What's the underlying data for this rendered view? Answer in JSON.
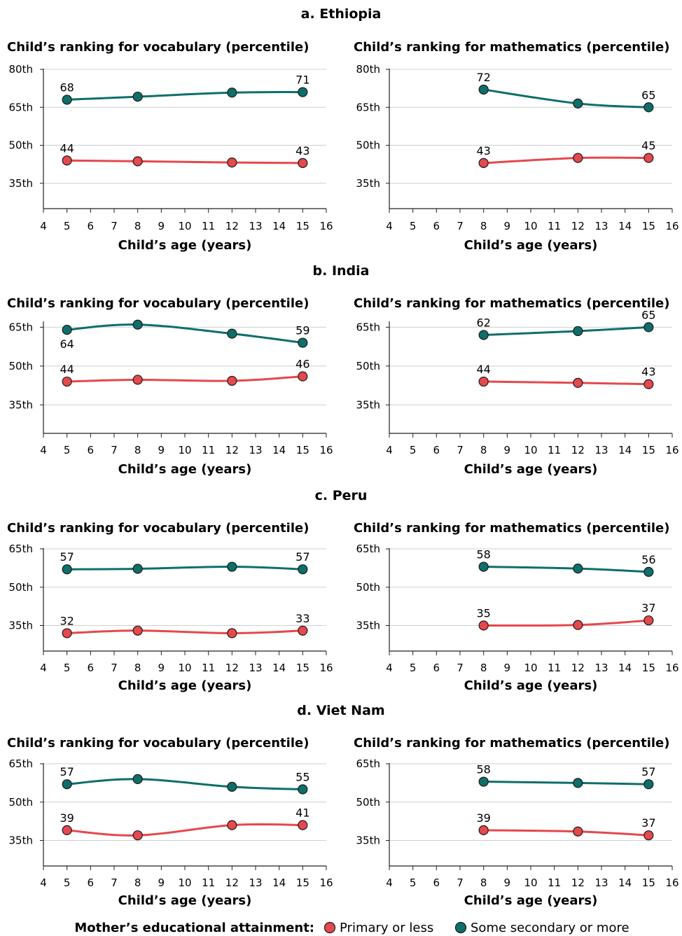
{
  "series_names": [
    "Primary or less",
    "Some secondary or more"
  ],
  "colors": {
    "primary": "#e5484d",
    "secondary": "#0e6e6a",
    "outline": "#1a1a1a",
    "grid": "#cfcfcf"
  },
  "x_ticks": [
    4,
    5,
    6,
    7,
    8,
    9,
    10,
    11,
    12,
    13,
    14,
    15,
    16
  ],
  "xlabel": "Child’s age (years)",
  "legend": {
    "title": "Mother’s educational attainment:",
    "items": [
      "Primary or less",
      "Some secondary or more"
    ]
  },
  "chart_data": [
    {
      "panel": "a. Ethiopia",
      "y_ticks": [
        35,
        50,
        65,
        80
      ],
      "y_tick_labels": [
        "35th",
        "50th",
        "65th",
        "80th"
      ],
      "ylim": [
        25,
        80
      ],
      "charts": [
        {
          "type": "line",
          "title": "Child’s ranking for vocabulary (percentile)",
          "xlabel": "Child’s age (years)",
          "xlim": [
            4,
            16
          ],
          "series": [
            {
              "name": "Primary or less",
              "x": [
                5,
                8,
                12,
                15
              ],
              "values": [
                44,
                43.7,
                43.2,
                43
              ],
              "labels": [
                "44",
                "",
                "",
                "43"
              ],
              "label_pos": [
                "above",
                "",
                "",
                "above"
              ]
            },
            {
              "name": "Some secondary or more",
              "x": [
                5,
                8,
                12,
                15
              ],
              "values": [
                68,
                69.2,
                70.8,
                71
              ],
              "labels": [
                "68",
                "",
                "",
                "71"
              ],
              "label_pos": [
                "above",
                "",
                "",
                "above"
              ]
            }
          ]
        },
        {
          "type": "line",
          "title": "Child’s ranking for mathematics (percentile)",
          "xlabel": "Child’s age (years)",
          "xlim": [
            4,
            16
          ],
          "series": [
            {
              "name": "Primary or less",
              "x": [
                8,
                12,
                15
              ],
              "values": [
                43,
                45,
                45
              ],
              "labels": [
                "43",
                "",
                "45"
              ],
              "label_pos": [
                "above",
                "",
                "above"
              ]
            },
            {
              "name": "Some secondary or more",
              "x": [
                8,
                12,
                15
              ],
              "values": [
                72,
                66.5,
                65
              ],
              "labels": [
                "72",
                "",
                "65"
              ],
              "label_pos": [
                "above",
                "",
                "above"
              ]
            }
          ]
        }
      ]
    },
    {
      "panel": "b. India",
      "y_ticks": [
        35,
        50,
        65
      ],
      "y_tick_labels": [
        "35th",
        "50th",
        "65th"
      ],
      "ylim": [
        24,
        67
      ],
      "charts": [
        {
          "type": "line",
          "title": "Child’s ranking for vocabulary (percentile)",
          "xlabel": "Child’s age (years)",
          "xlim": [
            4,
            16
          ],
          "series": [
            {
              "name": "Primary or less",
              "x": [
                5,
                8,
                12,
                15
              ],
              "values": [
                44,
                44.7,
                44.3,
                46
              ],
              "labels": [
                "44",
                "",
                "",
                "46"
              ],
              "label_pos": [
                "above",
                "",
                "",
                "above"
              ]
            },
            {
              "name": "Some secondary or more",
              "x": [
                5,
                8,
                12,
                15
              ],
              "values": [
                64,
                66,
                62.5,
                59
              ],
              "labels": [
                "64",
                "",
                "",
                "59"
              ],
              "label_pos": [
                "below",
                "",
                "",
                "above"
              ]
            }
          ]
        },
        {
          "type": "line",
          "title": "Child’s ranking for mathematics (percentile)",
          "xlabel": "Child’s age (years)",
          "xlim": [
            4,
            16
          ],
          "series": [
            {
              "name": "Primary or less",
              "x": [
                8,
                12,
                15
              ],
              "values": [
                44,
                43.5,
                43
              ],
              "labels": [
                "44",
                "",
                "43"
              ],
              "label_pos": [
                "above",
                "",
                "above"
              ]
            },
            {
              "name": "Some secondary or more",
              "x": [
                8,
                12,
                15
              ],
              "values": [
                62,
                63.5,
                65
              ],
              "labels": [
                "62",
                "",
                "65"
              ],
              "label_pos": [
                "above",
                "",
                "above"
              ]
            }
          ]
        }
      ]
    },
    {
      "panel": "c. Peru",
      "y_ticks": [
        35,
        50,
        65
      ],
      "y_tick_labels": [
        "35th",
        "50th",
        "65th"
      ],
      "ylim": [
        25,
        65
      ],
      "charts": [
        {
          "type": "line",
          "title": "Child’s ranking for vocabulary (percentile)",
          "xlabel": "Child’s age (years)",
          "xlim": [
            4,
            16
          ],
          "series": [
            {
              "name": "Primary or less",
              "x": [
                5,
                8,
                12,
                15
              ],
              "values": [
                32,
                33,
                32,
                33
              ],
              "labels": [
                "32",
                "",
                "",
                "33"
              ],
              "label_pos": [
                "above",
                "",
                "",
                "above"
              ]
            },
            {
              "name": "Some secondary or more",
              "x": [
                5,
                8,
                12,
                15
              ],
              "values": [
                57,
                57.2,
                58,
                57
              ],
              "labels": [
                "57",
                "",
                "",
                "57"
              ],
              "label_pos": [
                "above",
                "",
                "",
                "above"
              ]
            }
          ]
        },
        {
          "type": "line",
          "title": "Child’s ranking for mathematics (percentile)",
          "xlabel": "Child’s age (years)",
          "xlim": [
            4,
            16
          ],
          "series": [
            {
              "name": "Primary or less",
              "x": [
                8,
                12,
                15
              ],
              "values": [
                35,
                35.2,
                37
              ],
              "labels": [
                "35",
                "",
                "37"
              ],
              "label_pos": [
                "above",
                "",
                "above"
              ]
            },
            {
              "name": "Some secondary or more",
              "x": [
                8,
                12,
                15
              ],
              "values": [
                58,
                57.3,
                56
              ],
              "labels": [
                "58",
                "",
                "56"
              ],
              "label_pos": [
                "above",
                "",
                "above"
              ]
            }
          ]
        }
      ]
    },
    {
      "panel": "d. Viet Nam",
      "y_ticks": [
        35,
        50,
        65
      ],
      "y_tick_labels": [
        "35th",
        "50th",
        "65th"
      ],
      "ylim": [
        25,
        65
      ],
      "charts": [
        {
          "type": "line",
          "title": "Child’s ranking for vocabulary (percentile)",
          "xlabel": "Child’s age (years)",
          "xlim": [
            4,
            16
          ],
          "series": [
            {
              "name": "Primary or less",
              "x": [
                5,
                8,
                12,
                15
              ],
              "values": [
                39,
                37,
                41,
                41
              ],
              "labels": [
                "39",
                "",
                "",
                "41"
              ],
              "label_pos": [
                "above",
                "",
                "",
                "above"
              ]
            },
            {
              "name": "Some secondary or more",
              "x": [
                5,
                8,
                12,
                15
              ],
              "values": [
                57,
                59,
                56,
                55
              ],
              "labels": [
                "57",
                "",
                "",
                "55"
              ],
              "label_pos": [
                "above",
                "",
                "",
                "above"
              ]
            }
          ]
        },
        {
          "type": "line",
          "title": "Child’s ranking for mathematics (percentile)",
          "xlabel": "Child’s age (years)",
          "xlim": [
            4,
            16
          ],
          "series": [
            {
              "name": "Primary or less",
              "x": [
                8,
                12,
                15
              ],
              "values": [
                39,
                38.5,
                37
              ],
              "labels": [
                "39",
                "",
                "37"
              ],
              "label_pos": [
                "above",
                "",
                "above"
              ]
            },
            {
              "name": "Some secondary or more",
              "x": [
                8,
                12,
                15
              ],
              "values": [
                58,
                57.5,
                57
              ],
              "labels": [
                "58",
                "",
                "57"
              ],
              "label_pos": [
                "above",
                "",
                "above"
              ]
            }
          ]
        }
      ]
    }
  ]
}
